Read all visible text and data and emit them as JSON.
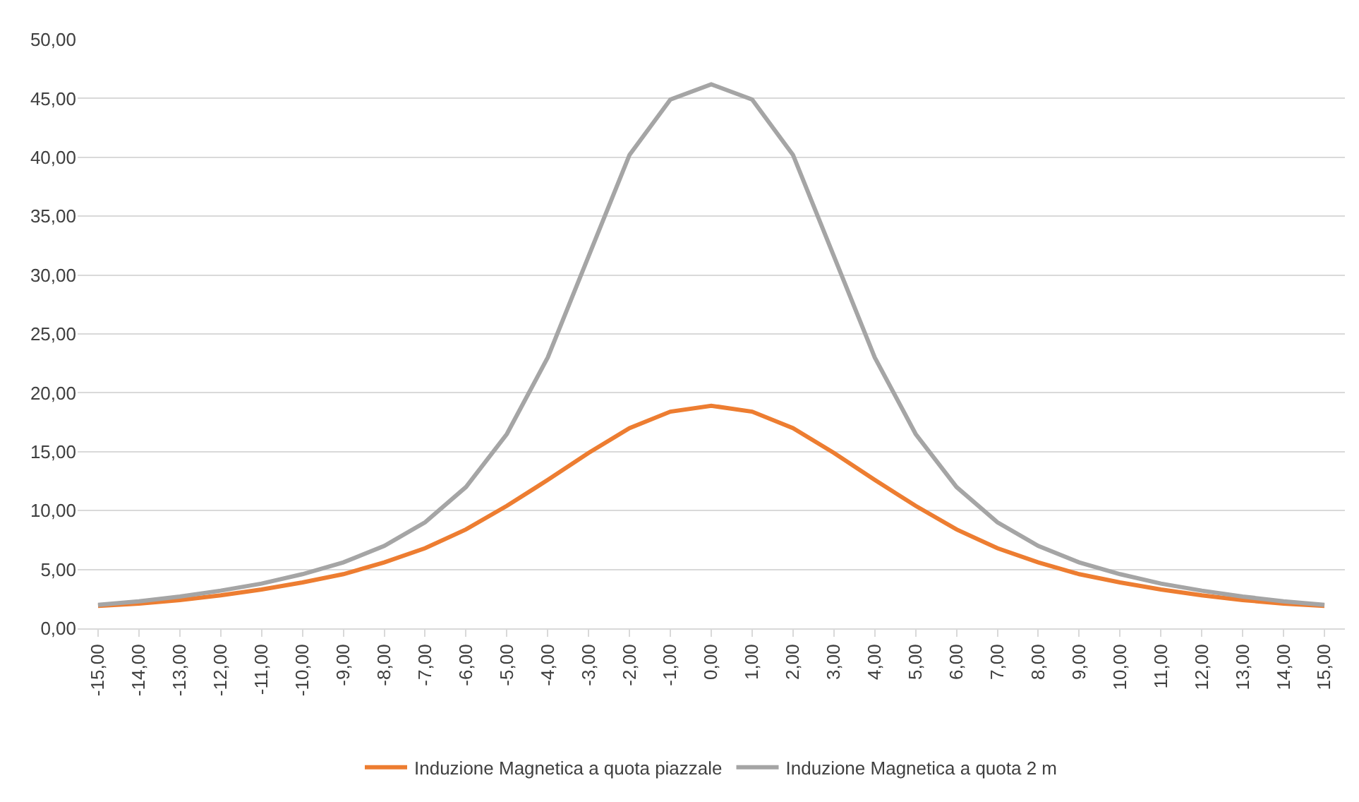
{
  "chart_data": {
    "type": "line",
    "categories": [
      "-15,00",
      "-14,00",
      "-13,00",
      "-12,00",
      "-11,00",
      "-10,00",
      "-9,00",
      "-8,00",
      "-7,00",
      "-6,00",
      "-5,00",
      "-4,00",
      "-3,00",
      "-2,00",
      "-1,00",
      "0,00",
      "1,00",
      "2,00",
      "3,00",
      "4,00",
      "5,00",
      "6,00",
      "7,00",
      "8,00",
      "9,00",
      "10,00",
      "11,00",
      "12,00",
      "13,00",
      "14,00",
      "15,00"
    ],
    "series": [
      {
        "name": "Induzione Magnetica a quota piazzale",
        "color": "#ed7d31",
        "values": [
          1.9,
          2.1,
          2.4,
          2.8,
          3.3,
          3.9,
          4.6,
          5.6,
          6.8,
          8.4,
          10.4,
          12.6,
          14.9,
          17.0,
          18.4,
          18.9,
          18.4,
          17.0,
          14.9,
          12.6,
          10.4,
          8.4,
          6.8,
          5.6,
          4.6,
          3.9,
          3.3,
          2.8,
          2.4,
          2.1,
          1.9
        ]
      },
      {
        "name": "Induzione Magnetica a quota 2 m",
        "color": "#a5a5a5",
        "values": [
          2.0,
          2.3,
          2.7,
          3.2,
          3.8,
          4.6,
          5.6,
          7.0,
          9.0,
          12.0,
          16.5,
          23.0,
          31.6,
          40.2,
          44.9,
          46.2,
          44.9,
          40.2,
          31.6,
          23.0,
          16.5,
          12.0,
          9.0,
          7.0,
          5.6,
          4.6,
          3.8,
          3.2,
          2.7,
          2.3,
          2.0
        ]
      }
    ],
    "ylim": [
      0,
      50
    ],
    "yticks": [
      {
        "value": 0,
        "label": "0,00"
      },
      {
        "value": 5,
        "label": "5,00"
      },
      {
        "value": 10,
        "label": "10,00"
      },
      {
        "value": 15,
        "label": "15,00"
      },
      {
        "value": 20,
        "label": "20,00"
      },
      {
        "value": 25,
        "label": "25,00"
      },
      {
        "value": 30,
        "label": "30,00"
      },
      {
        "value": 35,
        "label": "35,00"
      },
      {
        "value": 40,
        "label": "40,00"
      },
      {
        "value": 45,
        "label": "45,00"
      },
      {
        "value": 50,
        "label": "50,00"
      }
    ],
    "grid": "y",
    "legend": "bottom",
    "marker": "none",
    "line_style": "solid"
  }
}
